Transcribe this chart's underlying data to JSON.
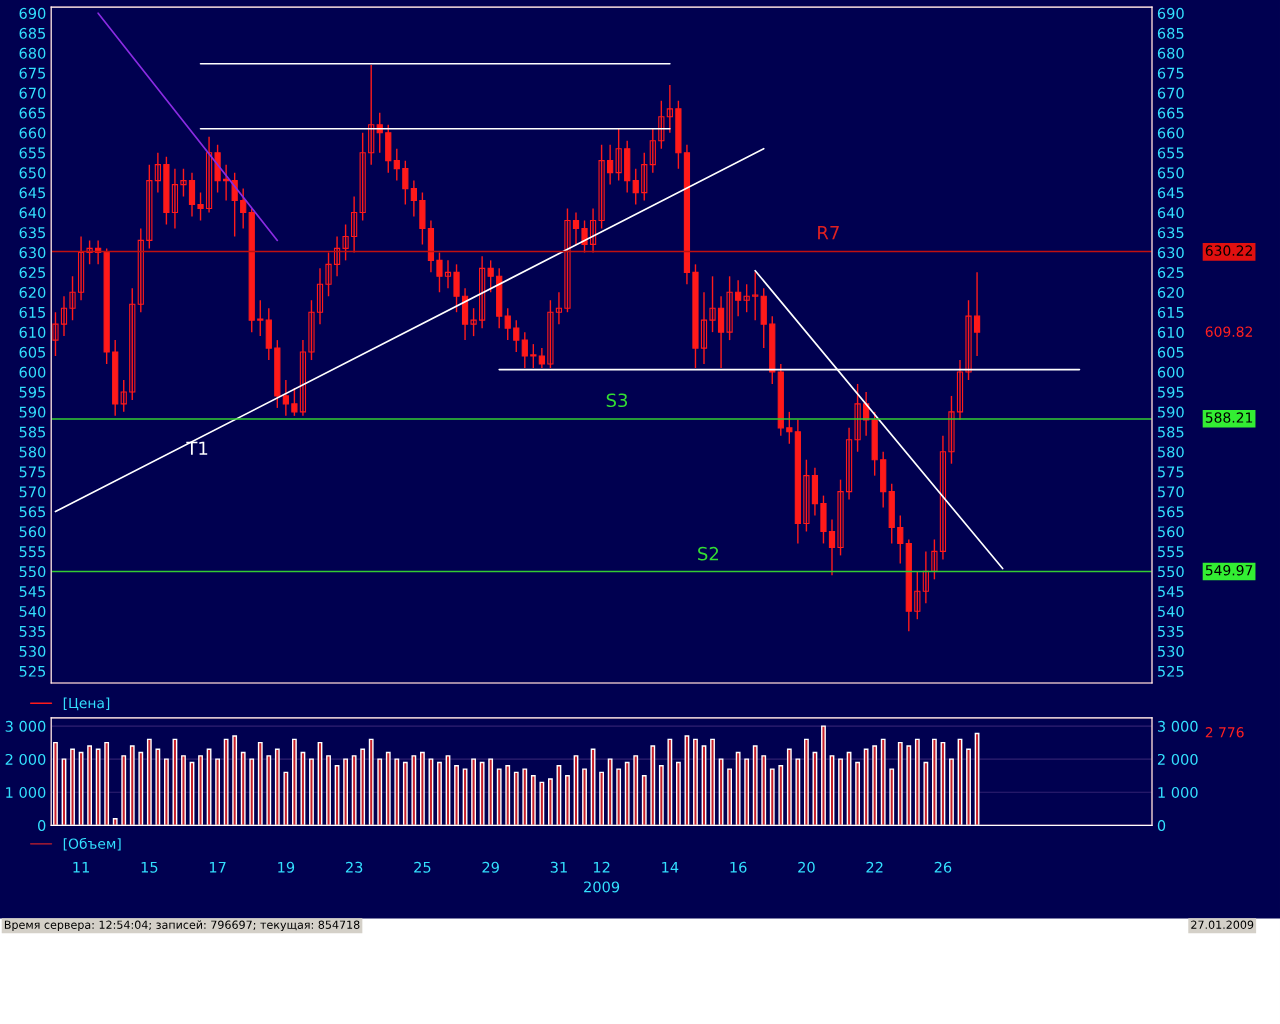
{
  "chart_data": [
    {
      "type": "candlestick",
      "categories": [
        null,
        null,
        null,
        "11",
        null,
        null,
        null,
        null,
        null,
        null,
        null,
        "15",
        null,
        null,
        null,
        null,
        null,
        null,
        null,
        "17",
        null,
        null,
        null,
        null,
        null,
        null,
        null,
        "19",
        null,
        null,
        null,
        null,
        null,
        null,
        null,
        "23",
        null,
        null,
        null,
        null,
        null,
        null,
        null,
        "25",
        null,
        null,
        null,
        null,
        null,
        null,
        null,
        "29",
        null,
        null,
        null,
        null,
        null,
        null,
        null,
        "31",
        null,
        null,
        null,
        null,
        "12",
        null,
        null,
        null,
        null,
        null,
        null,
        null,
        "14",
        null,
        null,
        null,
        null,
        null,
        null,
        null,
        "16",
        null,
        null,
        null,
        null,
        null,
        null,
        null,
        "20",
        null,
        null,
        null,
        null,
        null,
        null,
        null,
        "22",
        null,
        null,
        null,
        null,
        null,
        null,
        null,
        "26",
        null,
        null,
        null,
        null,
        null,
        null,
        null,
        null,
        null,
        null,
        null,
        null,
        null,
        null,
        null,
        null,
        null,
        null,
        null,
        null,
        null,
        null,
        null,
        null
      ],
      "series": [
        {
          "type": "candlestick",
          "name": "[Цена]",
          "color": "#ff1a1a",
          "ohlc": [
            [
              608,
              615,
              604,
              612
            ],
            [
              612,
              619,
              609,
              616
            ],
            [
              616,
              624,
              613,
              620
            ],
            [
              620,
              634,
              618,
              630
            ],
            [
              630,
              633,
              627,
              631
            ],
            [
              631,
              633,
              627,
              630
            ],
            [
              630,
              631,
              602,
              605
            ],
            [
              605,
              608,
              589,
              592
            ],
            [
              592,
              598,
              590,
              595
            ],
            [
              595,
              621,
              593,
              617
            ],
            [
              617,
              636,
              615,
              633
            ],
            [
              633,
              652,
              631,
              648
            ],
            [
              648,
              655,
              645,
              652
            ],
            [
              652,
              654,
              637,
              640
            ],
            [
              640,
              651,
              636,
              647
            ],
            [
              647,
              651,
              644,
              648
            ],
            [
              648,
              650,
              639,
              642
            ],
            [
              642,
              645,
              638,
              641
            ],
            [
              641,
              659,
              640,
              655
            ],
            [
              655,
              657,
              645,
              648
            ],
            [
              648,
              652,
              643,
              648
            ],
            [
              648,
              650,
              634,
              643
            ],
            [
              643,
              646,
              636,
              640
            ],
            [
              640,
              641,
              610,
              613
            ],
            [
              613,
              618,
              609,
              613
            ],
            [
              613,
              616,
              603,
              606
            ],
            [
              606,
              608,
              591,
              594
            ],
            [
              594,
              598,
              589,
              592
            ],
            [
              592,
              596,
              589,
              590
            ],
            [
              590,
              608,
              589,
              605
            ],
            [
              605,
              618,
              603,
              615
            ],
            [
              615,
              626,
              612,
              622
            ],
            [
              622,
              630,
              619,
              627
            ],
            [
              627,
              634,
              624,
              631
            ],
            [
              631,
              637,
              628,
              634
            ],
            [
              634,
              644,
              630,
              640
            ],
            [
              640,
              660,
              638,
              655
            ],
            [
              655,
              677,
              652,
              662
            ],
            [
              662,
              665,
              655,
              660
            ],
            [
              660,
              662,
              650,
              653
            ],
            [
              653,
              656,
              648,
              651
            ],
            [
              651,
              653,
              642,
              646
            ],
            [
              646,
              648,
              639,
              643
            ],
            [
              643,
              645,
              632,
              636
            ],
            [
              636,
              638,
              625,
              628
            ],
            [
              628,
              630,
              620,
              624
            ],
            [
              624,
              628,
              621,
              625
            ],
            [
              625,
              627,
              615,
              619
            ],
            [
              619,
              621,
              608,
              612
            ],
            [
              612,
              616,
              609,
              613
            ],
            [
              613,
              629,
              611,
              626
            ],
            [
              626,
              628,
              620,
              624
            ],
            [
              624,
              626,
              611,
              614
            ],
            [
              614,
              616,
              608,
              611
            ],
            [
              611,
              613,
              605,
              608
            ],
            [
              608,
              610,
              601,
              604
            ],
            [
              604,
              607,
              601,
              604
            ],
            [
              604,
              606,
              601,
              602
            ],
            [
              602,
              618,
              601,
              615
            ],
            [
              615,
              620,
              612,
              616
            ],
            [
              616,
              641,
              615,
              638
            ],
            [
              638,
              640,
              632,
              636
            ],
            [
              636,
              638,
              630,
              632
            ],
            [
              632,
              641,
              630,
              638
            ],
            [
              638,
              657,
              636,
              653
            ],
            [
              653,
              657,
              647,
              650
            ],
            [
              650,
              661,
              648,
              656
            ],
            [
              656,
              658,
              645,
              648
            ],
            [
              648,
              651,
              642,
              645
            ],
            [
              645,
              655,
              643,
              652
            ],
            [
              652,
              661,
              650,
              658
            ],
            [
              658,
              668,
              656,
              664
            ],
            [
              664,
              672,
              660,
              666
            ],
            [
              666,
              668,
              651,
              655
            ],
            [
              655,
              657,
              622,
              625
            ],
            [
              625,
              627,
              601,
              606
            ],
            [
              606,
              620,
              602,
              613
            ],
            [
              613,
              624,
              610,
              616
            ],
            [
              616,
              619,
              601,
              610
            ],
            [
              610,
              624,
              608,
              620
            ],
            [
              620,
              623,
              614,
              618
            ],
            [
              618,
              622,
              615,
              619
            ],
            [
              619,
              625,
              613,
              619
            ],
            [
              619,
              621,
              606,
              612
            ],
            [
              612,
              614,
              597,
              600
            ],
            [
              600,
              602,
              584,
              586
            ],
            [
              586,
              590,
              582,
              585
            ],
            [
              585,
              588,
              557,
              562
            ],
            [
              562,
              578,
              560,
              574
            ],
            [
              574,
              576,
              564,
              567
            ],
            [
              567,
              569,
              557,
              560
            ],
            [
              560,
              563,
              549,
              556
            ],
            [
              556,
              573,
              554,
              570
            ],
            [
              570,
              586,
              568,
              583
            ],
            [
              583,
              597,
              580,
              592
            ],
            [
              592,
              595,
              584,
              588
            ],
            [
              588,
              590,
              574,
              578
            ],
            [
              578,
              580,
              566,
              570
            ],
            [
              570,
              572,
              557,
              561
            ],
            [
              561,
              564,
              552,
              557
            ],
            [
              557,
              558,
              535,
              540
            ],
            [
              540,
              550,
              538,
              545
            ],
            [
              545,
              555,
              542,
              550
            ],
            [
              550,
              558,
              548,
              555
            ],
            [
              555,
              584,
              553,
              580
            ],
            [
              580,
              594,
              577,
              590
            ],
            [
              590,
              603,
              588,
              600
            ],
            [
              600,
              618,
              598,
              614
            ],
            [
              614,
              625,
              604,
              610
            ],
            null,
            null,
            null,
            null,
            null,
            null,
            null,
            null,
            null,
            null,
            null,
            null,
            null,
            null,
            null,
            null,
            null,
            null,
            null,
            null
          ]
        },
        {
          "type": "line",
          "color": "#ffffff",
          "values": [
            565,
            null,
            null,
            null,
            null,
            null,
            null,
            null,
            null,
            null,
            null,
            null,
            null,
            null,
            null,
            null,
            null,
            null,
            null,
            null,
            null,
            null,
            null,
            null,
            null,
            null,
            null,
            null,
            null,
            null,
            null,
            null,
            null,
            null,
            null,
            null,
            null,
            null,
            null,
            null,
            null,
            null,
            null,
            null,
            null,
            null,
            null,
            null,
            null,
            null,
            null,
            null,
            null,
            null,
            null,
            null,
            null,
            null,
            null,
            null,
            null,
            null,
            null,
            null,
            null,
            null,
            null,
            null,
            null,
            null,
            null,
            null,
            null,
            null,
            null,
            null,
            null,
            null,
            null,
            null,
            null,
            null,
            null,
            656,
            null,
            null,
            null,
            null,
            null,
            null,
            null,
            null,
            null,
            null,
            null,
            null,
            null,
            null,
            null,
            null,
            null,
            null,
            null,
            null,
            null,
            null,
            null,
            null,
            null,
            null,
            null,
            null,
            null,
            null,
            null,
            null,
            null,
            null,
            null,
            null,
            null,
            null,
            null,
            null,
            null,
            null,
            null,
            null,
            null
          ]
        },
        {
          "type": "line",
          "color": "#ffffff",
          "values": [
            null,
            null,
            null,
            null,
            null,
            null,
            null,
            null,
            null,
            null,
            null,
            null,
            null,
            null,
            null,
            null,
            null,
            677.3,
            null,
            null,
            null,
            null,
            null,
            null,
            null,
            null,
            null,
            null,
            null,
            null,
            null,
            null,
            null,
            null,
            null,
            null,
            null,
            null,
            null,
            null,
            null,
            null,
            null,
            null,
            null,
            null,
            null,
            null,
            null,
            null,
            null,
            null,
            null,
            null,
            null,
            null,
            null,
            null,
            null,
            null,
            null,
            null,
            null,
            null,
            null,
            null,
            null,
            null,
            null,
            null,
            null,
            null,
            677.3,
            null,
            null,
            null,
            null,
            null,
            null,
            null,
            null,
            null,
            null,
            null,
            null,
            null,
            null,
            null,
            null,
            null,
            null,
            null,
            null,
            null,
            null,
            null,
            null,
            null,
            null,
            null,
            null,
            null,
            null,
            null,
            null,
            null,
            null,
            null,
            null,
            null,
            null,
            null,
            null,
            null,
            null,
            null,
            null,
            null,
            null,
            null,
            null,
            null,
            null,
            null,
            null,
            null,
            null,
            null,
            null
          ]
        },
        {
          "type": "line",
          "color": "#ffffff",
          "values": [
            null,
            null,
            null,
            null,
            null,
            null,
            null,
            null,
            null,
            null,
            null,
            null,
            null,
            null,
            null,
            null,
            null,
            661,
            null,
            null,
            null,
            null,
            null,
            null,
            null,
            null,
            null,
            null,
            null,
            null,
            null,
            null,
            null,
            null,
            null,
            null,
            null,
            null,
            null,
            null,
            null,
            null,
            null,
            null,
            null,
            null,
            null,
            null,
            null,
            null,
            null,
            null,
            null,
            null,
            null,
            null,
            null,
            null,
            null,
            null,
            null,
            null,
            null,
            null,
            null,
            null,
            null,
            null,
            null,
            null,
            null,
            null,
            661,
            null,
            null,
            null,
            null,
            null,
            null,
            null,
            null,
            null,
            null,
            null,
            null,
            null,
            null,
            null,
            null,
            null,
            null,
            null,
            null,
            null,
            null,
            null,
            null,
            null,
            null,
            null,
            null,
            null,
            null,
            null,
            null,
            null,
            null,
            null,
            null,
            null,
            null,
            null,
            null,
            null,
            null,
            null,
            null,
            null,
            null,
            null,
            null,
            null,
            null,
            null,
            null,
            null,
            null,
            null,
            null
          ]
        },
        {
          "type": "line",
          "color": "#ffffff",
          "values": [
            null,
            null,
            null,
            null,
            null,
            null,
            null,
            null,
            null,
            null,
            null,
            null,
            null,
            null,
            null,
            null,
            null,
            null,
            null,
            null,
            null,
            null,
            null,
            null,
            null,
            null,
            null,
            null,
            null,
            null,
            null,
            null,
            null,
            null,
            null,
            null,
            null,
            null,
            null,
            null,
            null,
            null,
            null,
            null,
            null,
            null,
            null,
            null,
            null,
            null,
            null,
            null,
            600.6,
            null,
            null,
            null,
            null,
            null,
            null,
            null,
            null,
            null,
            null,
            null,
            null,
            null,
            null,
            null,
            null,
            null,
            null,
            null,
            null,
            null,
            null,
            null,
            null,
            null,
            null,
            null,
            null,
            null,
            null,
            null,
            null,
            null,
            null,
            null,
            null,
            null,
            null,
            null,
            null,
            null,
            null,
            null,
            null,
            null,
            null,
            null,
            null,
            null,
            null,
            null,
            null,
            null,
            null,
            null,
            null,
            null,
            null,
            null,
            null,
            null,
            null,
            null,
            null,
            null,
            null,
            null,
            600.6,
            null,
            null,
            null,
            null,
            null,
            null,
            null,
            null
          ]
        },
        {
          "type": "line",
          "color": "#8a2be2",
          "values": [
            null,
            null,
            null,
            null,
            null,
            690,
            null,
            null,
            null,
            null,
            null,
            null,
            null,
            null,
            null,
            null,
            null,
            null,
            null,
            null,
            null,
            null,
            null,
            null,
            null,
            null,
            633,
            null,
            null,
            null,
            null,
            null,
            null,
            null,
            null,
            null,
            null,
            null,
            null,
            null,
            null,
            null,
            null,
            null,
            null,
            null,
            null,
            null,
            null,
            null,
            null,
            null,
            null,
            null,
            null,
            null,
            null,
            null,
            null,
            null,
            null,
            null,
            null,
            null,
            null,
            null,
            null,
            null,
            null,
            null,
            null,
            null,
            null,
            null,
            null,
            null,
            null,
            null,
            null,
            null,
            null,
            null,
            null,
            null,
            null,
            null,
            null,
            null,
            null,
            null,
            null,
            null,
            null,
            null,
            null,
            null,
            null,
            null,
            null,
            null,
            null,
            null,
            null,
            null,
            null,
            null,
            null,
            null,
            null,
            null,
            null,
            null,
            null,
            null,
            null,
            null,
            null,
            null,
            null,
            null,
            null,
            null,
            null,
            null,
            null,
            null,
            null,
            null,
            null
          ]
        },
        {
          "type": "line",
          "color": "#ffffff",
          "values": [
            null,
            null,
            null,
            null,
            null,
            null,
            null,
            null,
            null,
            null,
            null,
            null,
            null,
            null,
            null,
            null,
            null,
            null,
            null,
            null,
            null,
            null,
            null,
            null,
            null,
            null,
            null,
            null,
            null,
            null,
            null,
            null,
            null,
            null,
            null,
            null,
            null,
            null,
            null,
            null,
            null,
            null,
            null,
            null,
            null,
            null,
            null,
            null,
            null,
            null,
            null,
            null,
            null,
            null,
            null,
            null,
            null,
            null,
            null,
            null,
            null,
            null,
            null,
            null,
            null,
            null,
            null,
            null,
            null,
            null,
            null,
            null,
            null,
            null,
            null,
            null,
            null,
            null,
            null,
            null,
            null,
            null,
            625.4,
            null,
            null,
            null,
            null,
            null,
            null,
            null,
            null,
            null,
            null,
            null,
            null,
            null,
            null,
            null,
            null,
            null,
            null,
            null,
            null,
            null,
            null,
            null,
            null,
            null,
            null,
            null,
            null,
            550.7,
            null,
            null,
            null,
            null,
            null,
            null,
            null,
            null,
            null,
            null,
            null,
            null,
            null,
            null,
            null,
            null,
            null
          ]
        }
      ],
      "ylim": [
        522,
        691.5
      ],
      "yticks": [
        525,
        530,
        535,
        540,
        545,
        550,
        555,
        560,
        565,
        570,
        575,
        580,
        585,
        590,
        595,
        600,
        605,
        610,
        615,
        620,
        625,
        630,
        635,
        640,
        645,
        650,
        655,
        660,
        665,
        670,
        675,
        680,
        685,
        690
      ],
      "y2lim": [
        522,
        691.5
      ],
      "y2ticks": [
        525,
        530,
        535,
        540,
        545,
        550,
        555,
        560,
        565,
        570,
        575,
        580,
        585,
        590,
        595,
        600,
        605,
        610,
        615,
        620,
        625,
        630,
        635,
        640,
        645,
        650,
        655,
        660,
        665,
        670,
        675,
        680,
        685,
        690
      ],
      "tick_labels": "y",
      "ref_lines": [
        {
          "axis": "y",
          "value": 630.22,
          "color": "#c01010"
        },
        {
          "axis": "y",
          "value": 588.21,
          "color": "#33cc33"
        },
        {
          "axis": "y",
          "value": 549.97,
          "color": "#33cc33"
        }
      ],
      "annotations": [
        "R7",
        "S3",
        "S2",
        "T1",
        "630.22",
        "609.82",
        "588.21",
        "549.97"
      ],
      "legend": "bottom left"
    },
    {
      "type": "bar",
      "categories": [
        null,
        null,
        null,
        "11",
        null,
        null,
        null,
        null,
        null,
        null,
        null,
        "15",
        null,
        null,
        null,
        null,
        null,
        null,
        null,
        "17",
        null,
        null,
        null,
        null,
        null,
        null,
        null,
        "19",
        null,
        null,
        null,
        null,
        null,
        null,
        null,
        "23",
        null,
        null,
        null,
        null,
        null,
        null,
        null,
        "25",
        null,
        null,
        null,
        null,
        null,
        null,
        null,
        "29",
        null,
        null,
        null,
        null,
        null,
        null,
        null,
        "31",
        null,
        null,
        null,
        null,
        "12",
        null,
        null,
        null,
        null,
        null,
        null,
        null,
        "14",
        null,
        null,
        null,
        null,
        null,
        null,
        null,
        "16",
        null,
        null,
        null,
        null,
        null,
        null,
        null,
        "20",
        null,
        null,
        null,
        null,
        null,
        null,
        null,
        "22",
        null,
        null,
        null,
        null,
        null,
        null,
        null,
        "26",
        null,
        null,
        null,
        null,
        null,
        null,
        null,
        null,
        null,
        null,
        null,
        null,
        null,
        null,
        null,
        null,
        null,
        null,
        null,
        null,
        null,
        null,
        null,
        null
      ],
      "series": [
        {
          "name": "[Объем]",
          "color": "#c8202a",
          "values": [
            2500,
            2000,
            2300,
            2200,
            2400,
            2300,
            2500,
            200,
            2100,
            2400,
            2200,
            2600,
            2300,
            2000,
            2600,
            2100,
            1900,
            2100,
            2300,
            2000,
            2600,
            2700,
            2200,
            2000,
            2500,
            2100,
            2300,
            1600,
            2600,
            2200,
            2000,
            2500,
            2100,
            1800,
            2000,
            2100,
            2300,
            2600,
            2000,
            2200,
            2000,
            1900,
            2100,
            2200,
            2000,
            1900,
            2100,
            1800,
            1700,
            2000,
            1900,
            2000,
            1700,
            1800,
            1600,
            1700,
            1500,
            1300,
            1400,
            1800,
            1500,
            2100,
            1700,
            2300,
            1600,
            2000,
            1700,
            1900,
            2100,
            1500,
            2400,
            1800,
            2600,
            1900,
            2700,
            2600,
            2400,
            2600,
            2000,
            1700,
            2200,
            2000,
            2400,
            2100,
            1700,
            1800,
            2300,
            2000,
            2600,
            2200,
            3000,
            2100,
            2000,
            2200,
            1900,
            2300,
            2400,
            2600,
            1700,
            2500,
            2400,
            2600,
            1900,
            2600,
            2500,
            2000,
            2600,
            2300,
            2776,
            null,
            null,
            null,
            null,
            null,
            null,
            null,
            null,
            null,
            null,
            null,
            null,
            null,
            null,
            null,
            null,
            null,
            null,
            null,
            null
          ]
        }
      ],
      "ylim": [
        0,
        3250
      ],
      "yticks": [
        {
          "value": 0,
          "label": "0"
        },
        {
          "value": 1000,
          "label": "1 000"
        },
        {
          "value": 2000,
          "label": "2 000"
        },
        {
          "value": 3000,
          "label": "3 000"
        }
      ],
      "y2lim": [
        0,
        3250
      ],
      "y2ticks": [
        {
          "value": 0,
          "label": "0"
        },
        {
          "value": 1000,
          "label": "1 000"
        },
        {
          "value": 2000,
          "label": "2 000"
        },
        {
          "value": 3000,
          "label": "3 000"
        }
      ],
      "xlabel": "2009",
      "grid": "y",
      "annotations": [
        "2 776",
        "Время сервера: 12:54:04; записей: 796697; текущая: 854718",
        "27.01.2009"
      ],
      "legend": "bottom left"
    }
  ]
}
